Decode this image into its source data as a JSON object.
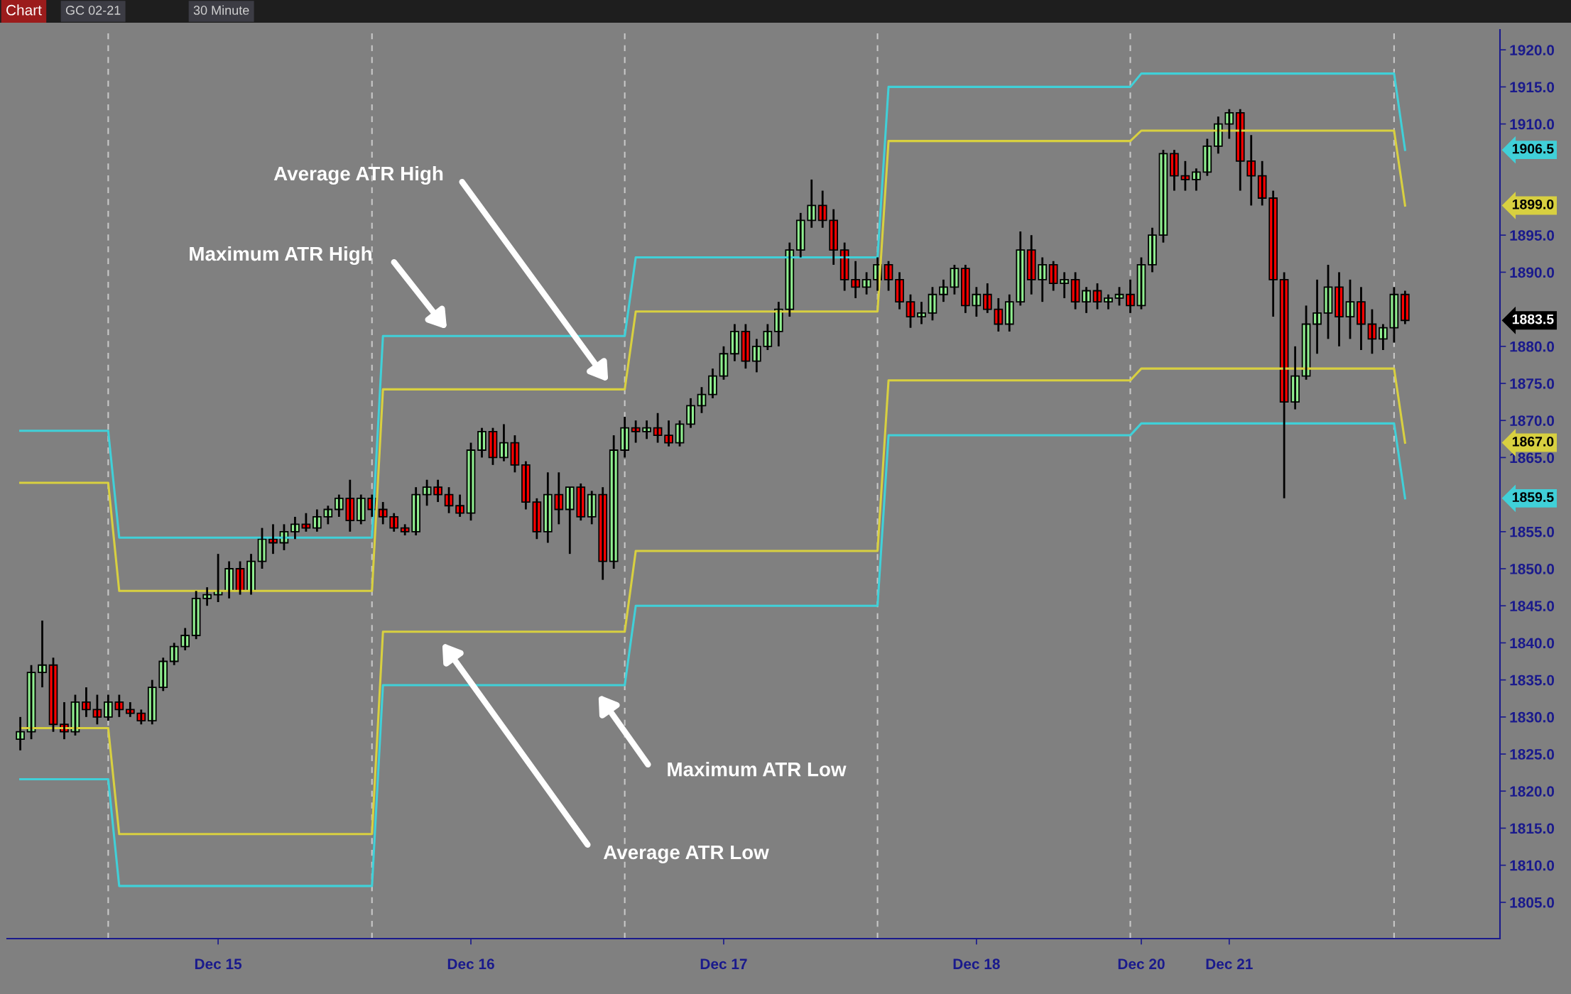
{
  "chart_data": {
    "type": "candlestick",
    "title": "GC 02-21",
    "subtitle": "30 Minute",
    "annotations": [
      "Chart",
      "Average ATR High",
      "Maximum ATR High",
      "Maximum ATR Low",
      "Average ATR Low",
      "1883.5",
      "1906.5",
      "1899.0",
      "1867.0",
      "1859.5"
    ],
    "categories": [
      null,
      null,
      null,
      null,
      null,
      null,
      null,
      null,
      null,
      null,
      null,
      null,
      null,
      null,
      null,
      null,
      null,
      null,
      "Dec 15",
      null,
      null,
      null,
      null,
      null,
      null,
      null,
      null,
      null,
      null,
      null,
      null,
      null,
      null,
      null,
      null,
      null,
      null,
      null,
      null,
      null,
      null,
      "Dec 16",
      null,
      null,
      null,
      null,
      null,
      null,
      null,
      null,
      null,
      null,
      null,
      null,
      null,
      null,
      null,
      null,
      null,
      null,
      null,
      null,
      null,
      null,
      "Dec 17",
      null,
      null,
      null,
      null,
      null,
      null,
      null,
      null,
      null,
      null,
      null,
      null,
      null,
      null,
      null,
      null,
      null,
      null,
      null,
      null,
      null,
      null,
      "Dec 18",
      null,
      null,
      null,
      null,
      null,
      null,
      null,
      null,
      null,
      null,
      null,
      null,
      null,
      null,
      "Dec 20",
      null,
      null,
      null,
      null,
      null,
      null,
      null,
      "Dec 21",
      null,
      null,
      null,
      null,
      null,
      null,
      null,
      null,
      null,
      null,
      null,
      null,
      null,
      null,
      null,
      null
    ],
    "ohlc": [
      [
        1827,
        1830,
        1825.5,
        1828
      ],
      [
        1828,
        1837,
        1827,
        1836
      ],
      [
        1836,
        1843,
        1834,
        1837
      ],
      [
        1837,
        1838,
        1828,
        1829
      ],
      [
        1829,
        1832,
        1827,
        1828
      ],
      [
        1828,
        1833,
        1827.5,
        1832
      ],
      [
        1832,
        1834,
        1830,
        1831
      ],
      [
        1831,
        1833,
        1829,
        1830
      ],
      [
        1830,
        1833,
        1829.5,
        1832
      ],
      [
        1832,
        1833,
        1830,
        1831
      ],
      [
        1831,
        1832,
        1830,
        1830.5
      ],
      [
        1830.5,
        1831,
        1829,
        1829.5
      ],
      [
        1829.5,
        1835,
        1829,
        1834
      ],
      [
        1834,
        1838,
        1833.5,
        1837.5
      ],
      [
        1837.5,
        1840,
        1837,
        1839.5
      ],
      [
        1839.5,
        1842,
        1839,
        1841
      ],
      [
        1841,
        1847,
        1840.5,
        1846
      ],
      [
        1846,
        1847.5,
        1845,
        1846.5
      ],
      [
        1846.5,
        1852,
        1845.5,
        1847
      ],
      [
        1847,
        1851,
        1846,
        1850
      ],
      [
        1850,
        1851,
        1846.5,
        1847
      ],
      [
        1847,
        1852,
        1846.5,
        1851
      ],
      [
        1851,
        1855.5,
        1850,
        1854
      ],
      [
        1854,
        1856,
        1852,
        1853.5
      ],
      [
        1853.5,
        1856,
        1852.5,
        1855
      ],
      [
        1855,
        1857,
        1854,
        1856
      ],
      [
        1856,
        1857.5,
        1855,
        1855.5
      ],
      [
        1855.5,
        1858,
        1855,
        1857
      ],
      [
        1857,
        1858.5,
        1856,
        1858
      ],
      [
        1858,
        1860,
        1857,
        1859.5
      ],
      [
        1859.5,
        1862,
        1855,
        1856.5
      ],
      [
        1856.5,
        1860,
        1856,
        1859.5
      ],
      [
        1859.5,
        1860,
        1857,
        1858
      ],
      [
        1858,
        1859,
        1856,
        1857
      ],
      [
        1857,
        1857.5,
        1855,
        1855.5
      ],
      [
        1855.5,
        1856,
        1854.5,
        1855
      ],
      [
        1855,
        1861,
        1854.5,
        1860
      ],
      [
        1860,
        1862,
        1858.5,
        1861
      ],
      [
        1861,
        1862,
        1859,
        1860
      ],
      [
        1860,
        1861,
        1857.5,
        1858.5
      ],
      [
        1858.5,
        1860,
        1857,
        1857.5
      ],
      [
        1857.5,
        1867,
        1856.5,
        1866
      ],
      [
        1866,
        1869,
        1865,
        1868.5
      ],
      [
        1868.5,
        1869,
        1864,
        1865
      ],
      [
        1865,
        1869.5,
        1864.5,
        1867
      ],
      [
        1867,
        1868,
        1863,
        1864
      ],
      [
        1864,
        1864.5,
        1858,
        1859
      ],
      [
        1859,
        1859.5,
        1854,
        1855
      ],
      [
        1855,
        1863,
        1853.5,
        1860
      ],
      [
        1860,
        1863,
        1856,
        1858
      ],
      [
        1858,
        1861,
        1852,
        1861
      ],
      [
        1861,
        1861.5,
        1856.5,
        1857
      ],
      [
        1857,
        1860.5,
        1856,
        1860
      ],
      [
        1860,
        1861,
        1848.5,
        1851
      ],
      [
        1851,
        1868,
        1850,
        1866
      ],
      [
        1866,
        1870.5,
        1865,
        1869
      ],
      [
        1869,
        1870,
        1867,
        1868.5
      ],
      [
        1868.5,
        1870,
        1867.5,
        1869
      ],
      [
        1869,
        1871,
        1867,
        1868
      ],
      [
        1868,
        1870,
        1866.5,
        1867
      ],
      [
        1867,
        1870,
        1866.5,
        1869.5
      ],
      [
        1869.5,
        1873,
        1869,
        1872
      ],
      [
        1872,
        1874.5,
        1871,
        1873.5
      ],
      [
        1873.5,
        1877,
        1873,
        1876
      ],
      [
        1876,
        1880,
        1875.5,
        1879
      ],
      [
        1879,
        1883,
        1878,
        1882
      ],
      [
        1882,
        1883,
        1877,
        1878
      ],
      [
        1878,
        1881,
        1876.5,
        1880
      ],
      [
        1880,
        1883,
        1879.5,
        1882
      ],
      [
        1882,
        1886,
        1880,
        1885
      ],
      [
        1885,
        1894,
        1884,
        1893
      ],
      [
        1893,
        1898,
        1892,
        1897
      ],
      [
        1897,
        1902.5,
        1896,
        1899
      ],
      [
        1899,
        1901,
        1896,
        1897
      ],
      [
        1897,
        1898.5,
        1891,
        1893
      ],
      [
        1893,
        1894,
        1887.5,
        1889
      ],
      [
        1889,
        1891.5,
        1886.5,
        1888
      ],
      [
        1888,
        1890,
        1887,
        1889
      ],
      [
        1889,
        1892,
        1887.5,
        1891
      ],
      [
        1891,
        1891.5,
        1887.5,
        1889
      ],
      [
        1889,
        1890,
        1885,
        1886
      ],
      [
        1886,
        1887,
        1882.5,
        1884
      ],
      [
        1884,
        1886,
        1883,
        1884.5
      ],
      [
        1884.5,
        1888,
        1883.5,
        1887
      ],
      [
        1887,
        1889,
        1886,
        1888
      ],
      [
        1888,
        1891,
        1887,
        1890.5
      ],
      [
        1890.5,
        1891,
        1884.5,
        1885.5
      ],
      [
        1885.5,
        1888,
        1884,
        1887
      ],
      [
        1887,
        1888.5,
        1884.5,
        1885
      ],
      [
        1885,
        1886.5,
        1882,
        1883
      ],
      [
        1883,
        1887,
        1882,
        1886
      ],
      [
        1886,
        1895.5,
        1885.5,
        1893
      ],
      [
        1893,
        1895,
        1887,
        1889
      ],
      [
        1889,
        1892,
        1886,
        1891
      ],
      [
        1891,
        1891.5,
        1887.5,
        1888.5
      ],
      [
        1888.5,
        1890,
        1886.5,
        1889
      ],
      [
        1889,
        1890,
        1885,
        1886
      ],
      [
        1886,
        1888,
        1884.5,
        1887.5
      ],
      [
        1887.5,
        1888.5,
        1885,
        1886
      ],
      [
        1886,
        1887,
        1885,
        1886.5
      ],
      [
        1886.5,
        1888,
        1885.5,
        1887
      ],
      [
        1887,
        1889,
        1884.5,
        1885.5
      ],
      [
        1885.5,
        1892,
        1885,
        1891
      ],
      [
        1891,
        1896,
        1890,
        1895
      ],
      [
        1895,
        1906.5,
        1894,
        1906
      ],
      [
        1906,
        1906.5,
        1901,
        1903
      ],
      [
        1903,
        1905,
        1901,
        1902.5
      ],
      [
        1902.5,
        1904,
        1901,
        1903.5
      ],
      [
        1903.5,
        1908,
        1903,
        1907
      ],
      [
        1907,
        1911,
        1906,
        1910
      ],
      [
        1910,
        1912,
        1908,
        1911.5
      ],
      [
        1911.5,
        1912,
        1901,
        1905
      ],
      [
        1905,
        1908.5,
        1899,
        1903
      ],
      [
        1903,
        1905,
        1899,
        1900
      ],
      [
        1900,
        1901,
        1884,
        1889
      ],
      [
        1889,
        1890,
        1859.5,
        1872.5
      ],
      [
        1872.5,
        1880,
        1871.5,
        1876
      ],
      [
        1876,
        1885.5,
        1875.5,
        1883
      ],
      [
        1883,
        1889,
        1879,
        1884.5
      ],
      [
        1884.5,
        1891,
        1881,
        1888
      ],
      [
        1888,
        1890,
        1880,
        1884
      ],
      [
        1884,
        1889,
        1881,
        1886
      ],
      [
        1886,
        1888,
        1879.5,
        1883
      ],
      [
        1883,
        1885,
        1879,
        1881
      ],
      [
        1881,
        1883,
        1879.5,
        1882.5
      ],
      [
        1882.5,
        1888,
        1880.5,
        1887
      ],
      [
        1887,
        1887.5,
        1883,
        1883.5
      ]
    ],
    "series": [
      {
        "type": "line",
        "color": "#40d0d8",
        "values": [
          1868.6,
          1868.6,
          1868.6,
          1868.6,
          1868.6,
          1868.6,
          1868.6,
          1868.6,
          1868.6,
          1854.2,
          1854.2,
          1854.2,
          1854.2,
          1854.2,
          1854.2,
          1854.2,
          1854.2,
          1854.2,
          1854.2,
          1854.2,
          1854.2,
          1854.2,
          1854.2,
          1854.2,
          1854.2,
          1854.2,
          1854.2,
          1854.2,
          1854.2,
          1854.2,
          1854.2,
          1854.2,
          1854.2,
          1881.4,
          1881.4,
          1881.4,
          1881.4,
          1881.4,
          1881.4,
          1881.4,
          1881.4,
          1881.4,
          1881.4,
          1881.4,
          1881.4,
          1881.4,
          1881.4,
          1881.4,
          1881.4,
          1881.4,
          1881.4,
          1881.4,
          1881.4,
          1881.4,
          1881.4,
          1881.4,
          1892.0,
          1892.0,
          1892.0,
          1892.0,
          1892.0,
          1892.0,
          1892.0,
          1892.0,
          1892.0,
          1892.0,
          1892.0,
          1892.0,
          1892.0,
          1892.0,
          1892.0,
          1892.0,
          1892.0,
          1892.0,
          1892.0,
          1892.0,
          1892.0,
          1892.0,
          1892.0,
          1915.0,
          1915.0,
          1915.0,
          1915.0,
          1915.0,
          1915.0,
          1915.0,
          1915.0,
          1915.0,
          1915.0,
          1915.0,
          1915.0,
          1915.0,
          1915.0,
          1915.0,
          1915.0,
          1915.0,
          1915.0,
          1915.0,
          1915.0,
          1915.0,
          1915.0,
          1915.0,
          1916.8,
          1916.8,
          1916.8,
          1916.8,
          1916.8,
          1916.8,
          1916.8,
          1916.8,
          1916.8,
          1916.8,
          1916.8,
          1916.8,
          1916.8,
          1916.8,
          1916.8,
          1916.8,
          1916.8,
          1916.8,
          1916.8,
          1916.8,
          1916.8,
          1916.8,
          1916.8,
          1916.8,
          1906.5
        ]
      },
      {
        "type": "line",
        "color": "#d8d040",
        "values": [
          1861.6,
          1861.6,
          1861.6,
          1861.6,
          1861.6,
          1861.6,
          1861.6,
          1861.6,
          1861.6,
          1847.0,
          1847.0,
          1847.0,
          1847.0,
          1847.0,
          1847.0,
          1847.0,
          1847.0,
          1847.0,
          1847.0,
          1847.0,
          1847.0,
          1847.0,
          1847.0,
          1847.0,
          1847.0,
          1847.0,
          1847.0,
          1847.0,
          1847.0,
          1847.0,
          1847.0,
          1847.0,
          1847.0,
          1874.2,
          1874.2,
          1874.2,
          1874.2,
          1874.2,
          1874.2,
          1874.2,
          1874.2,
          1874.2,
          1874.2,
          1874.2,
          1874.2,
          1874.2,
          1874.2,
          1874.2,
          1874.2,
          1874.2,
          1874.2,
          1874.2,
          1874.2,
          1874.2,
          1874.2,
          1874.2,
          1884.7,
          1884.7,
          1884.7,
          1884.7,
          1884.7,
          1884.7,
          1884.7,
          1884.7,
          1884.7,
          1884.7,
          1884.7,
          1884.7,
          1884.7,
          1884.7,
          1884.7,
          1884.7,
          1884.7,
          1884.7,
          1884.7,
          1884.7,
          1884.7,
          1884.7,
          1884.7,
          1907.7,
          1907.7,
          1907.7,
          1907.7,
          1907.7,
          1907.7,
          1907.7,
          1907.7,
          1907.7,
          1907.7,
          1907.7,
          1907.7,
          1907.7,
          1907.7,
          1907.7,
          1907.7,
          1907.7,
          1907.7,
          1907.7,
          1907.7,
          1907.7,
          1907.7,
          1907.7,
          1909.1,
          1909.1,
          1909.1,
          1909.1,
          1909.1,
          1909.1,
          1909.1,
          1909.1,
          1909.1,
          1909.1,
          1909.1,
          1909.1,
          1909.1,
          1909.1,
          1909.1,
          1909.1,
          1909.1,
          1909.1,
          1909.1,
          1909.1,
          1909.1,
          1909.1,
          1909.1,
          1909.1,
          1899.0
        ]
      },
      {
        "type": "line",
        "color": "#d8d040",
        "values": [
          1828.5,
          1828.5,
          1828.5,
          1828.5,
          1828.5,
          1828.5,
          1828.5,
          1828.5,
          1828.5,
          1814.2,
          1814.2,
          1814.2,
          1814.2,
          1814.2,
          1814.2,
          1814.2,
          1814.2,
          1814.2,
          1814.2,
          1814.2,
          1814.2,
          1814.2,
          1814.2,
          1814.2,
          1814.2,
          1814.2,
          1814.2,
          1814.2,
          1814.2,
          1814.2,
          1814.2,
          1814.2,
          1814.2,
          1841.5,
          1841.5,
          1841.5,
          1841.5,
          1841.5,
          1841.5,
          1841.5,
          1841.5,
          1841.5,
          1841.5,
          1841.5,
          1841.5,
          1841.5,
          1841.5,
          1841.5,
          1841.5,
          1841.5,
          1841.5,
          1841.5,
          1841.5,
          1841.5,
          1841.5,
          1841.5,
          1852.4,
          1852.4,
          1852.4,
          1852.4,
          1852.4,
          1852.4,
          1852.4,
          1852.4,
          1852.4,
          1852.4,
          1852.4,
          1852.4,
          1852.4,
          1852.4,
          1852.4,
          1852.4,
          1852.4,
          1852.4,
          1852.4,
          1852.4,
          1852.4,
          1852.4,
          1852.4,
          1875.4,
          1875.4,
          1875.4,
          1875.4,
          1875.4,
          1875.4,
          1875.4,
          1875.4,
          1875.4,
          1875.4,
          1875.4,
          1875.4,
          1875.4,
          1875.4,
          1875.4,
          1875.4,
          1875.4,
          1875.4,
          1875.4,
          1875.4,
          1875.4,
          1875.4,
          1875.4,
          1877.0,
          1877.0,
          1877.0,
          1877.0,
          1877.0,
          1877.0,
          1877.0,
          1877.0,
          1877.0,
          1877.0,
          1877.0,
          1877.0,
          1877.0,
          1877.0,
          1877.0,
          1877.0,
          1877.0,
          1877.0,
          1877.0,
          1877.0,
          1877.0,
          1877.0,
          1877.0,
          1877.0,
          1867.0
        ]
      },
      {
        "type": "line",
        "color": "#40d0d8",
        "values": [
          1821.6,
          1821.6,
          1821.6,
          1821.6,
          1821.6,
          1821.6,
          1821.6,
          1821.6,
          1821.6,
          1807.2,
          1807.2,
          1807.2,
          1807.2,
          1807.2,
          1807.2,
          1807.2,
          1807.2,
          1807.2,
          1807.2,
          1807.2,
          1807.2,
          1807.2,
          1807.2,
          1807.2,
          1807.2,
          1807.2,
          1807.2,
          1807.2,
          1807.2,
          1807.2,
          1807.2,
          1807.2,
          1807.2,
          1834.3,
          1834.3,
          1834.3,
          1834.3,
          1834.3,
          1834.3,
          1834.3,
          1834.3,
          1834.3,
          1834.3,
          1834.3,
          1834.3,
          1834.3,
          1834.3,
          1834.3,
          1834.3,
          1834.3,
          1834.3,
          1834.3,
          1834.3,
          1834.3,
          1834.3,
          1834.3,
          1845.0,
          1845.0,
          1845.0,
          1845.0,
          1845.0,
          1845.0,
          1845.0,
          1845.0,
          1845.0,
          1845.0,
          1845.0,
          1845.0,
          1845.0,
          1845.0,
          1845.0,
          1845.0,
          1845.0,
          1845.0,
          1845.0,
          1845.0,
          1845.0,
          1845.0,
          1845.0,
          1868.0,
          1868.0,
          1868.0,
          1868.0,
          1868.0,
          1868.0,
          1868.0,
          1868.0,
          1868.0,
          1868.0,
          1868.0,
          1868.0,
          1868.0,
          1868.0,
          1868.0,
          1868.0,
          1868.0,
          1868.0,
          1868.0,
          1868.0,
          1868.0,
          1868.0,
          1868.0,
          1869.6,
          1869.6,
          1869.6,
          1869.6,
          1869.6,
          1869.6,
          1869.6,
          1869.6,
          1869.6,
          1869.6,
          1869.6,
          1869.6,
          1869.6,
          1869.6,
          1869.6,
          1869.6,
          1869.6,
          1869.6,
          1869.6,
          1869.6,
          1869.6,
          1869.6,
          1869.6,
          1869.6,
          1859.5
        ]
      }
    ],
    "ylim": [
      1800.1,
      1922.7
    ],
    "yticks": [
      {
        "value": 1805,
        "label": "1805.0"
      },
      {
        "value": 1810,
        "label": "1810.0"
      },
      {
        "value": 1815,
        "label": "1815.0"
      },
      {
        "value": 1820,
        "label": "1820.0"
      },
      {
        "value": 1825,
        "label": "1825.0"
      },
      {
        "value": 1830,
        "label": "1830.0"
      },
      {
        "value": 1835,
        "label": "1835.0"
      },
      {
        "value": 1840,
        "label": "1840.0"
      },
      {
        "value": 1845,
        "label": "1845.0"
      },
      {
        "value": 1850,
        "label": "1850.0"
      },
      {
        "value": 1855,
        "label": "1855.0"
      },
      {
        "value": 1865,
        "label": "1865.0"
      },
      {
        "value": 1870,
        "label": "1870.0"
      },
      {
        "value": 1875,
        "label": "1875.0"
      },
      {
        "value": 1880,
        "label": "1880.0"
      },
      {
        "value": 1890,
        "label": "1890.0"
      },
      {
        "value": 1895,
        "label": "1895.0"
      },
      {
        "value": 1910,
        "label": "1910.0"
      },
      {
        "value": 1915,
        "label": "1915.0"
      },
      {
        "value": 1920,
        "label": "1920.0"
      }
    ],
    "grid": false
  }
}
